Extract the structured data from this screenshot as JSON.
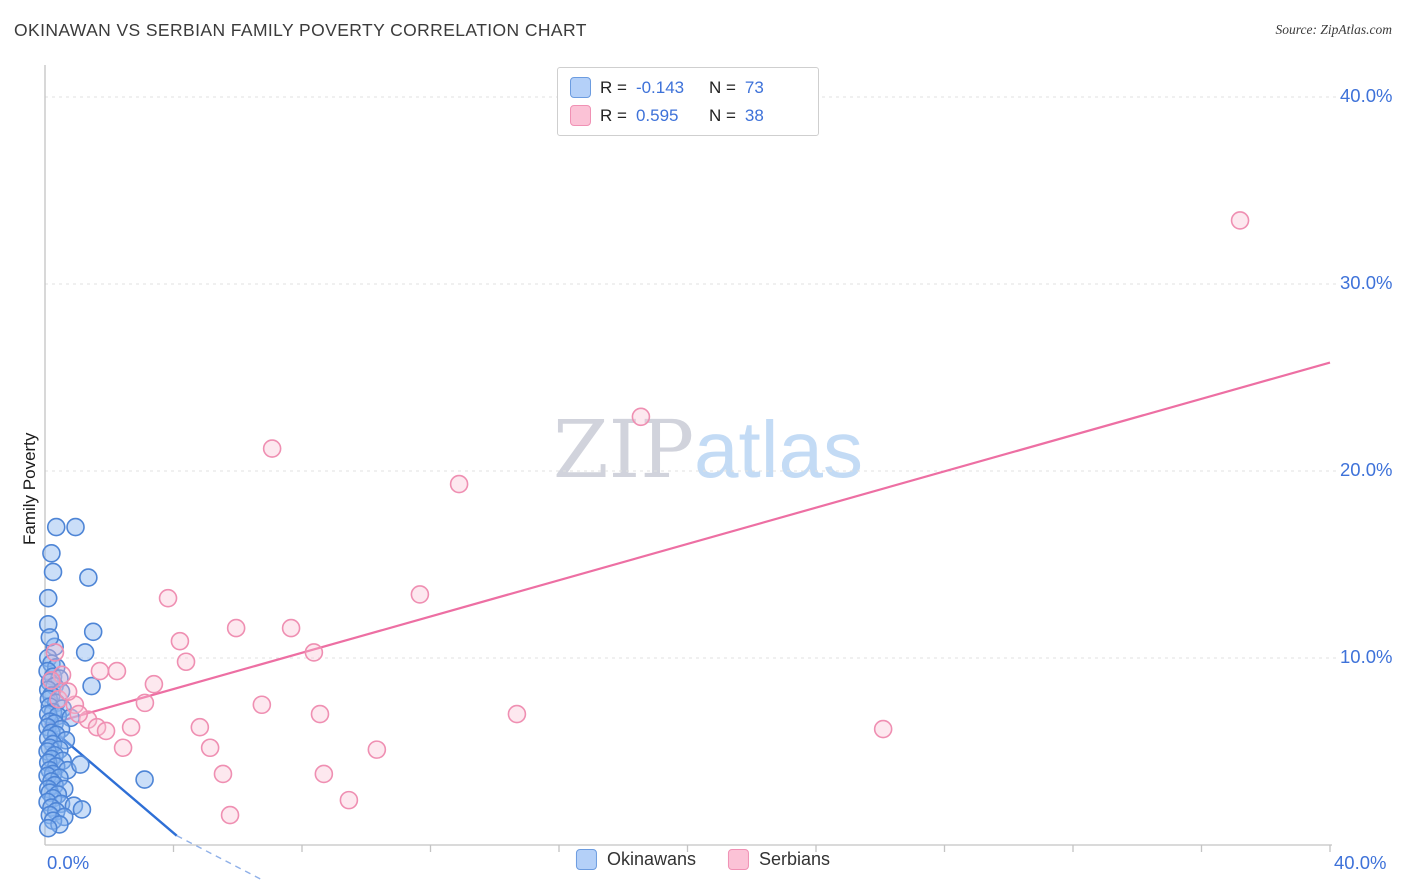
{
  "header": {
    "title": "OKINAWAN VS SERBIAN FAMILY POVERTY CORRELATION CHART",
    "source": "Source: ZipAtlas.com"
  },
  "watermark": {
    "part1": "ZIP",
    "part2": "atlas"
  },
  "axes": {
    "y_label": "Family Poverty",
    "x_min_label": "0.0%",
    "x_max_label": "40.0%",
    "y_ticks": [
      {
        "label": "40.0%",
        "value": 40
      },
      {
        "label": "30.0%",
        "value": 30
      },
      {
        "label": "20.0%",
        "value": 20
      },
      {
        "label": "10.0%",
        "value": 10
      }
    ]
  },
  "legend_stats": {
    "rows": [
      {
        "series": "Okinawans",
        "r_label": "R =",
        "r_value": "-0.143",
        "n_label": "N =",
        "n_value": "73"
      },
      {
        "series": "Serbians",
        "r_label": "R =",
        "r_value": "0.595",
        "n_label": "N =",
        "n_value": "38"
      }
    ]
  },
  "bottom_legend": {
    "items": [
      {
        "label": "Okinawans"
      },
      {
        "label": "Serbians"
      }
    ]
  },
  "colors": {
    "tick_label_blue": "#3e72d9",
    "grid": "#e0e0e0",
    "axis": "#c4c4c4",
    "okinawan_fill": "#8ab6f0",
    "okinawan_stroke": "#4e85d6",
    "serbian_fill": "#f9bcd2",
    "serbian_stroke": "#ef8fb2",
    "trend_blue": "#2e6fd6",
    "trend_pink": "#ed6fa3"
  },
  "chart_data": {
    "type": "scatter",
    "title": "OKINAWAN VS SERBIAN FAMILY POVERTY CORRELATION CHART",
    "xlabel": "",
    "ylabel": "Family Poverty",
    "xlim": [
      0,
      40
    ],
    "ylim": [
      0,
      40
    ],
    "grid": "horizontal-dashed",
    "legend_position": "bottom-center",
    "x_ticks": [
      4,
      8,
      12,
      16,
      20,
      24,
      28,
      32,
      36,
      40
    ],
    "y_gridlines": [
      10,
      20,
      30,
      40
    ],
    "series": [
      {
        "name": "Okinawans",
        "r": -0.143,
        "n": 73,
        "fill": "#8ab6f0",
        "fill_opacity": 0.45,
        "stroke": "#4e85d6",
        "legend_fill": "#b4d0f8",
        "legend_stroke": "#6c9ce0",
        "points": [
          [
            0.35,
            17.0
          ],
          [
            0.95,
            17.0
          ],
          [
            0.2,
            15.6
          ],
          [
            0.25,
            14.6
          ],
          [
            0.1,
            13.2
          ],
          [
            1.35,
            14.3
          ],
          [
            0.1,
            11.8
          ],
          [
            1.5,
            11.4
          ],
          [
            0.3,
            10.6
          ],
          [
            1.25,
            10.3
          ],
          [
            0.15,
            11.1
          ],
          [
            0.1,
            10.0
          ],
          [
            0.2,
            9.7
          ],
          [
            0.35,
            9.5
          ],
          [
            0.08,
            9.3
          ],
          [
            0.25,
            9.0
          ],
          [
            0.45,
            8.9
          ],
          [
            0.15,
            8.7
          ],
          [
            0.3,
            8.5
          ],
          [
            0.1,
            8.3
          ],
          [
            0.5,
            8.2
          ],
          [
            1.45,
            8.5
          ],
          [
            0.2,
            8.0
          ],
          [
            0.12,
            7.8
          ],
          [
            0.35,
            7.6
          ],
          [
            0.15,
            7.4
          ],
          [
            0.55,
            7.3
          ],
          [
            0.25,
            7.1
          ],
          [
            0.1,
            7.0
          ],
          [
            0.4,
            6.9
          ],
          [
            0.8,
            6.8
          ],
          [
            0.15,
            6.6
          ],
          [
            0.3,
            6.5
          ],
          [
            0.08,
            6.3
          ],
          [
            0.5,
            6.2
          ],
          [
            0.2,
            6.0
          ],
          [
            0.35,
            5.9
          ],
          [
            0.1,
            5.7
          ],
          [
            0.65,
            5.6
          ],
          [
            0.25,
            5.4
          ],
          [
            0.15,
            5.2
          ],
          [
            0.45,
            5.1
          ],
          [
            0.08,
            5.0
          ],
          [
            0.3,
            4.8
          ],
          [
            0.2,
            4.6
          ],
          [
            0.55,
            4.5
          ],
          [
            0.1,
            4.4
          ],
          [
            0.35,
            4.2
          ],
          [
            0.15,
            4.0
          ],
          [
            0.7,
            4.0
          ],
          [
            0.25,
            3.8
          ],
          [
            0.08,
            3.7
          ],
          [
            0.45,
            3.6
          ],
          [
            0.2,
            3.4
          ],
          [
            3.1,
            3.5
          ],
          [
            0.3,
            3.2
          ],
          [
            0.1,
            3.0
          ],
          [
            0.6,
            3.0
          ],
          [
            0.15,
            2.8
          ],
          [
            0.4,
            2.7
          ],
          [
            0.25,
            2.5
          ],
          [
            1.1,
            4.3
          ],
          [
            0.08,
            2.3
          ],
          [
            0.5,
            2.2
          ],
          [
            0.2,
            2.0
          ],
          [
            0.9,
            2.1
          ],
          [
            0.35,
            1.8
          ],
          [
            0.15,
            1.6
          ],
          [
            0.6,
            1.5
          ],
          [
            0.25,
            1.3
          ],
          [
            1.15,
            1.9
          ],
          [
            0.45,
            1.1
          ],
          [
            0.1,
            0.9
          ]
        ]
      },
      {
        "name": "Serbians",
        "r": 0.595,
        "n": 38,
        "fill": "#f9bcd2",
        "fill_opacity": 0.35,
        "stroke": "#ef8fb2",
        "legend_fill": "#fbc2d6",
        "legend_stroke": "#f091b4",
        "points": [
          [
            0.31,
            10.3
          ],
          [
            0.53,
            9.1
          ],
          [
            0.93,
            7.5
          ],
          [
            1.34,
            6.7
          ],
          [
            1.62,
            6.3
          ],
          [
            1.71,
            9.3
          ],
          [
            2.24,
            9.3
          ],
          [
            2.43,
            5.2
          ],
          [
            2.68,
            6.3
          ],
          [
            3.11,
            7.6
          ],
          [
            3.39,
            8.6
          ],
          [
            3.83,
            13.2
          ],
          [
            4.2,
            10.9
          ],
          [
            4.39,
            9.8
          ],
          [
            4.82,
            6.3
          ],
          [
            5.14,
            5.2
          ],
          [
            5.54,
            3.8
          ],
          [
            5.76,
            1.6
          ],
          [
            5.95,
            11.6
          ],
          [
            6.75,
            7.5
          ],
          [
            7.07,
            21.2
          ],
          [
            7.66,
            11.6
          ],
          [
            8.37,
            10.3
          ],
          [
            8.56,
            7.0
          ],
          [
            8.68,
            3.8
          ],
          [
            9.46,
            2.4
          ],
          [
            10.33,
            5.1
          ],
          [
            11.67,
            13.4
          ],
          [
            12.89,
            19.3
          ],
          [
            14.69,
            7.0
          ],
          [
            18.55,
            22.9
          ],
          [
            26.09,
            6.2
          ],
          [
            37.2,
            33.4
          ],
          [
            0.2,
            8.8
          ],
          [
            0.42,
            7.8
          ],
          [
            0.72,
            8.2
          ],
          [
            1.05,
            7.0
          ],
          [
            1.9,
            6.1
          ]
        ]
      }
    ],
    "trend_lines": [
      {
        "series": "Okinawans",
        "style": "solid",
        "color": "#2e6fd6",
        "width": 2.4,
        "points": [
          [
            0,
            6.5
          ],
          [
            4.1,
            0.5
          ]
        ]
      },
      {
        "series": "Okinawans",
        "style": "dashed",
        "color": "#8fb0e8",
        "width": 1.4,
        "points": [
          [
            4.1,
            0.5
          ],
          [
            6.8,
            -1.9
          ]
        ]
      },
      {
        "series": "Serbians",
        "style": "solid",
        "color": "#ed6fa3",
        "width": 2.2,
        "points": [
          [
            0,
            6.4
          ],
          [
            40,
            25.8
          ]
        ]
      }
    ]
  }
}
